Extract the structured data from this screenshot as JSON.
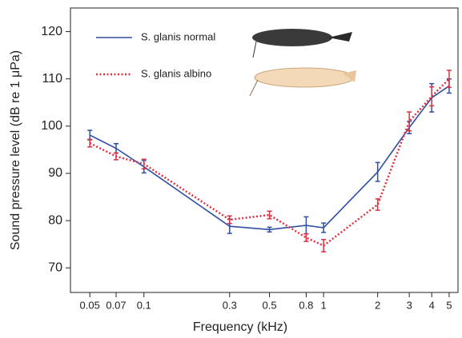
{
  "chart_data": {
    "type": "line",
    "x_label": "Frequency (kHz)",
    "y_label": "Sound pressure level (dB re 1 μPa)",
    "x": [
      0.05,
      0.07,
      0.1,
      0.3,
      0.5,
      0.8,
      1,
      2,
      3,
      4,
      5
    ],
    "xlim": [
      0.039,
      5.6
    ],
    "log_x": true,
    "xticks": [
      0.05,
      0.07,
      0.1,
      0.3,
      0.5,
      0.8,
      1,
      2,
      3,
      4,
      5
    ],
    "ylim": [
      64.8,
      125
    ],
    "yticks": [
      70,
      80,
      90,
      100,
      110,
      120
    ],
    "grid": false,
    "legend": "upper left",
    "series": [
      {
        "name": "S. glanis normal",
        "color": "#2f4fa3",
        "style": "solid",
        "values": [
          98.1,
          95.3,
          91.4,
          78.8,
          78.1,
          79.0,
          78.5,
          90.3,
          99.7,
          106.0,
          108.5
        ],
        "errors": [
          1.0,
          1.0,
          1.3,
          1.5,
          0.5,
          1.8,
          1.0,
          2.0,
          1.3,
          3.0,
          1.5
        ]
      },
      {
        "name": "S. glanis albino",
        "color": "#e0303f",
        "style": "dotted",
        "values": [
          96.4,
          93.6,
          92.0,
          80.2,
          81.2,
          76.4,
          74.7,
          83.4,
          101.0,
          106.3,
          110.0
        ],
        "errors": [
          0.8,
          0.7,
          1.0,
          0.8,
          0.8,
          0.8,
          1.3,
          1.2,
          2.0,
          2.0,
          1.8
        ]
      }
    ]
  }
}
